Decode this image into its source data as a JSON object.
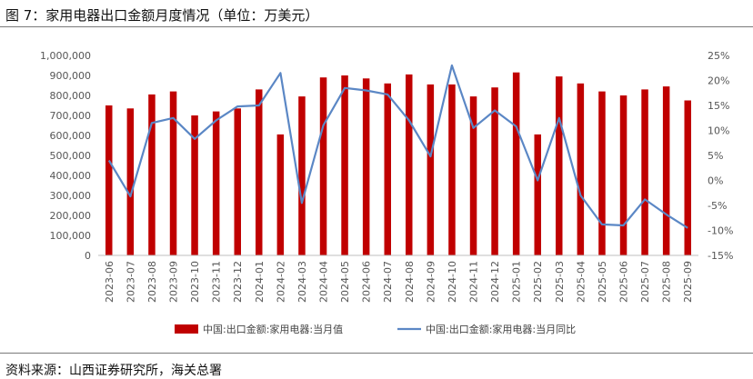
{
  "figure": {
    "title": "图 7：家用电器出口金额月度情况（单位：万美元）",
    "source": "资料来源：山西证券研究所，海关总署"
  },
  "colors": {
    "bar": "#C00000",
    "line": "#5B87C5",
    "axis": "#BFBFBF"
  },
  "chart_data": {
    "type": "bar+line",
    "categories": [
      "2023-06",
      "2023-07",
      "2023-08",
      "2023-09",
      "2023-10",
      "2023-11",
      "2023-12",
      "2024-01",
      "2024-02",
      "2024-03",
      "2024-04",
      "2024-05",
      "2024-06",
      "2024-07",
      "2024-08",
      "2024-09",
      "2024-10",
      "2024-11",
      "2024-12",
      "2025-01",
      "2025-02",
      "2025-03",
      "2025-04",
      "2025-05",
      "2025-06",
      "2025-07",
      "2025-08",
      "2025-09"
    ],
    "series": [
      {
        "name": "中国:出口金额:家用电器:当月值",
        "type": "bar",
        "axis": "left",
        "values": [
          750000,
          735000,
          805000,
          820000,
          700000,
          720000,
          735000,
          830000,
          605000,
          795000,
          890000,
          900000,
          885000,
          860000,
          905000,
          855000,
          855000,
          795000,
          840000,
          915000,
          605000,
          895000,
          860000,
          820000,
          800000,
          830000,
          845000,
          775000
        ]
      },
      {
        "name": "中国:出口金额:家用电器:当月同比",
        "type": "line",
        "axis": "right",
        "unit": "%",
        "values": [
          4.0,
          -3.2,
          11.5,
          12.5,
          8.3,
          12.0,
          14.8,
          15.0,
          21.5,
          -4.5,
          11.0,
          18.5,
          18.0,
          17.2,
          12.0,
          4.8,
          23.0,
          10.5,
          14.0,
          10.8,
          0.0,
          12.5,
          -3.0,
          -8.8,
          -9.0,
          -3.8,
          -6.8,
          -9.5
        ]
      }
    ],
    "y_left": {
      "min": 0,
      "max": 1000000,
      "step": 100000,
      "tick_labels": [
        "0",
        "100,000",
        "200,000",
        "300,000",
        "400,000",
        "500,000",
        "600,000",
        "700,000",
        "800,000",
        "900,000",
        "1,000,000"
      ]
    },
    "y_right": {
      "min": -15,
      "max": 25,
      "step": 5,
      "tick_labels": [
        "-15%",
        "-10%",
        "-5%",
        "0%",
        "5%",
        "10%",
        "15%",
        "20%",
        "25%"
      ]
    },
    "legend_position": "bottom-center",
    "grid": false
  }
}
